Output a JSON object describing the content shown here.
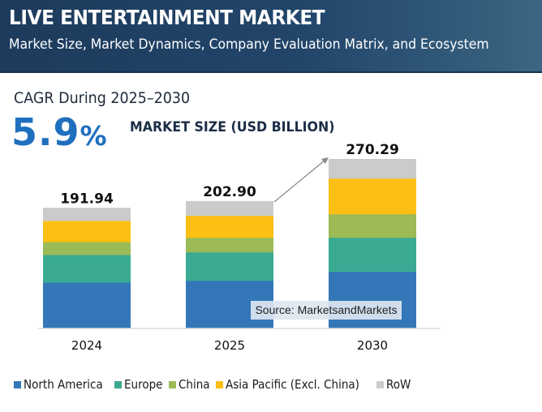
{
  "header": {
    "title": "LIVE ENTERTAINMENT MARKET",
    "subtitle": "Market Size, Market Dynamics, Company Evaluation Matrix, and Ecosystem"
  },
  "cagr": {
    "label": "CAGR During 2025–2030",
    "value": "5.9",
    "unit": "%"
  },
  "source": "Source: MarketsandMarkets",
  "colors": {
    "North America": "#3377b8",
    "Europe": "#3aab92",
    "China": "#9cba55",
    "Asia Pacific (Excl. China)": "#fcc014",
    "RoW": "#cbcbcb",
    "header": "#1d3b5c",
    "accent": "#1f6fbf"
  },
  "chart_data": {
    "type": "bar",
    "stacked": true,
    "title": "MARKET SIZE (USD BILLION)",
    "xlabel": "",
    "ylabel": "",
    "categories": [
      "2024",
      "2025",
      "2030"
    ],
    "totals": [
      "191.94",
      "202.90",
      "270.29"
    ],
    "series": [
      {
        "name": "North America",
        "values": [
          72.6,
          75.4,
          89.7
        ]
      },
      {
        "name": "Europe",
        "values": [
          44.1,
          45.5,
          54.6
        ]
      },
      {
        "name": "China",
        "values": [
          20.7,
          23.4,
          37.7
        ]
      },
      {
        "name": "Asia Pacific (Excl. China)",
        "values": [
          33.8,
          35.1,
          57.2
        ]
      },
      {
        "name": "RoW",
        "values": [
          20.74,
          23.5,
          31.09
        ]
      }
    ],
    "ylim": [
      0,
      270.29
    ],
    "grid": false,
    "legend": "bottom",
    "annotations": [
      "growth arrow from 2025 to 2030"
    ]
  }
}
